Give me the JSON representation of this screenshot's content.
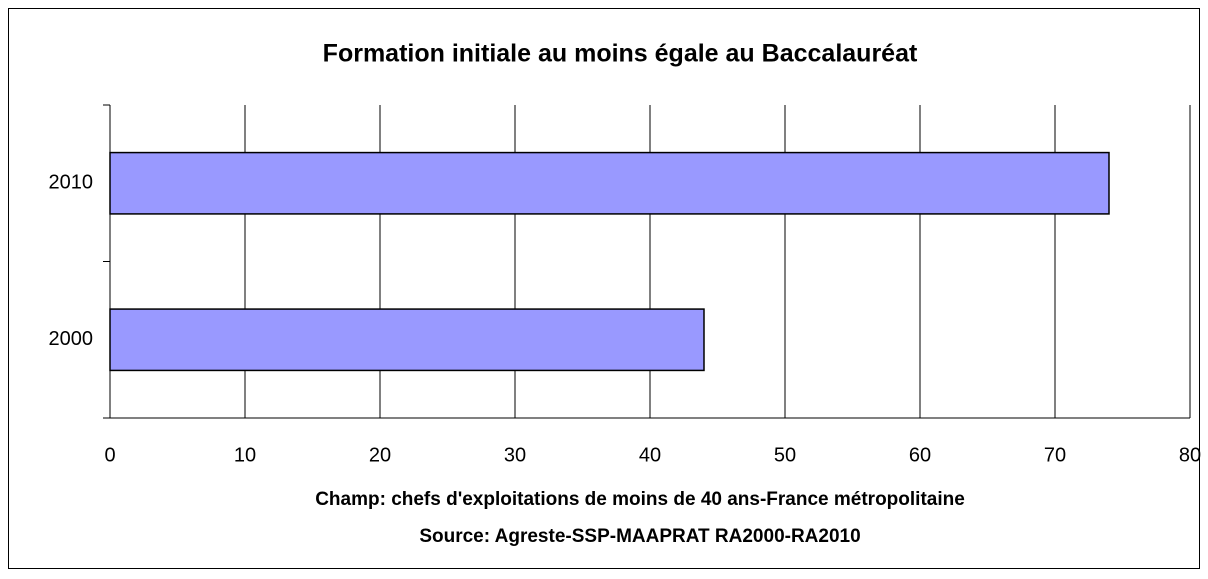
{
  "chart_data": {
    "type": "bar",
    "orientation": "horizontal",
    "title": "Formation initiale au moins égale au Baccalauréat",
    "categories": [
      "2010",
      "2000"
    ],
    "values": [
      74,
      44
    ],
    "color": "#9999ff",
    "xlim": [
      0,
      80
    ],
    "xticks": [
      0,
      10,
      20,
      30,
      40,
      50,
      60,
      70,
      80
    ],
    "grid": true,
    "xlabel": "Champ: chefs d'exploitations de moins de 40 ans-France métropolitaine",
    "source": "Source: Agreste-SSP-MAAPRAT RA2000-RA2010"
  }
}
